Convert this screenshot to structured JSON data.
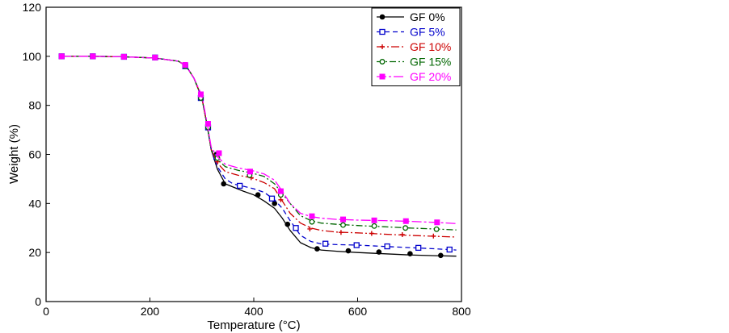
{
  "chart_data": {
    "type": "line",
    "xlabel": "Temperature (°C)",
    "ylabel": "Weight (%)",
    "xlim": [
      0,
      800
    ],
    "ylim": [
      0,
      120
    ],
    "xticks": [
      0,
      200,
      400,
      600,
      800
    ],
    "yticks": [
      0,
      20,
      40,
      60,
      80,
      100,
      120
    ],
    "grid": false,
    "legend_position": "top-right",
    "series": [
      {
        "name": "GF 0%",
        "color": "#000000",
        "dash": "solid",
        "marker": "filled-circle",
        "x": [
          30,
          90,
          150,
          210,
          255,
          270,
          285,
          300,
          310,
          318,
          330,
          345,
          380,
          400,
          420,
          440,
          455,
          470,
          490,
          510,
          530,
          560,
          600,
          650,
          700,
          750,
          790
        ],
        "y": [
          100,
          100,
          99.8,
          99.3,
          98,
          96,
          91,
          83,
          72,
          62,
          54,
          48,
          45,
          43.5,
          41,
          38,
          34,
          29,
          24,
          22,
          21,
          20.5,
          20,
          19.5,
          19,
          18.7,
          18.5
        ],
        "mx": [
          30,
          90,
          150,
          210,
          268,
          298,
          312,
          328,
          342,
          408,
          440,
          465,
          522,
          582,
          641,
          701,
          760
        ],
        "my": [
          100,
          100,
          99.8,
          99.5,
          96,
          83,
          72,
          60,
          48,
          43.5,
          40,
          31.5,
          21.5,
          20.7,
          20.2,
          19.5,
          18.8
        ]
      },
      {
        "name": "GF 5%",
        "color": "#0000cc",
        "dash": "6 4",
        "marker": "open-square",
        "x": [
          30,
          90,
          150,
          210,
          255,
          270,
          285,
          300,
          310,
          318,
          330,
          345,
          360,
          380,
          400,
          420,
          440,
          455,
          470,
          490,
          510,
          530,
          560,
          600,
          650,
          700,
          750,
          790
        ],
        "y": [
          100,
          100,
          99.8,
          99.3,
          98,
          96,
          91,
          83,
          72,
          62,
          55,
          50,
          48,
          47,
          46,
          44.5,
          41.5,
          38,
          33,
          27,
          24.5,
          23.5,
          23.2,
          23,
          22.5,
          22,
          21.5,
          21
        ],
        "mx": [
          30,
          90,
          150,
          210,
          268,
          298,
          312,
          328,
          373,
          435,
          481,
          538,
          598,
          657,
          717,
          777
        ],
        "my": [
          100,
          100,
          99.8,
          99.5,
          96,
          83,
          71,
          59,
          47.2,
          42,
          30,
          23.6,
          23,
          22.5,
          21.9,
          21.2
        ]
      },
      {
        "name": "GF 10%",
        "color": "#cc0000",
        "dash": "10 3 2 3",
        "marker": "plus",
        "x": [
          30,
          90,
          150,
          210,
          255,
          270,
          285,
          300,
          310,
          318,
          330,
          345,
          370,
          395,
          420,
          440,
          455,
          470,
          490,
          510,
          530,
          560,
          600,
          650,
          700,
          750,
          790
        ],
        "y": [
          100,
          100,
          99.8,
          99.3,
          98,
          96,
          91,
          83,
          72,
          62,
          56.5,
          53,
          51.5,
          50.5,
          48.5,
          46,
          41,
          36,
          32,
          30,
          29,
          28.3,
          28,
          27.5,
          27,
          26.6,
          26.3
        ],
        "mx": [
          30,
          90,
          150,
          210,
          268,
          298,
          312,
          330,
          395,
          452,
          508,
          568,
          627,
          686,
          746
        ],
        "my": [
          100,
          100,
          99.8,
          99.5,
          96,
          83,
          71,
          57,
          50.5,
          41.5,
          29.6,
          28.2,
          27.8,
          27.3,
          26.7
        ]
      },
      {
        "name": "GF 15%",
        "color": "#006600",
        "dash": "8 3 2 3",
        "marker": "open-circle",
        "x": [
          30,
          90,
          150,
          210,
          255,
          270,
          285,
          300,
          310,
          318,
          330,
          345,
          370,
          395,
          420,
          440,
          455,
          470,
          490,
          510,
          530,
          560,
          600,
          650,
          700,
          750,
          790
        ],
        "y": [
          100,
          100,
          99.8,
          99.3,
          98,
          96,
          91,
          83,
          72,
          62,
          58,
          55,
          53.5,
          52.5,
          51,
          48,
          44,
          40,
          35,
          33,
          32,
          31.5,
          31,
          30.5,
          30,
          29.6,
          29.2
        ],
        "mx": [
          30,
          90,
          150,
          210,
          268,
          298,
          312,
          330,
          392,
          452,
          512,
          572,
          632,
          692,
          752
        ],
        "my": [
          100,
          100,
          99.8,
          99.5,
          96,
          83,
          71,
          58.5,
          51.5,
          43.5,
          32.5,
          31.2,
          30.8,
          30,
          29.5
        ]
      },
      {
        "name": "GF 20%",
        "color": "#ff00ff",
        "dash": "12 3 3 3",
        "marker": "filled-square",
        "x": [
          30,
          90,
          150,
          210,
          255,
          270,
          285,
          300,
          310,
          318,
          330,
          345,
          370,
          395,
          420,
          440,
          455,
          470,
          490,
          510,
          530,
          560,
          600,
          650,
          700,
          750,
          790
        ],
        "y": [
          100,
          100,
          99.8,
          99.3,
          98,
          96,
          91,
          84,
          73,
          63,
          59,
          56,
          54.5,
          53.5,
          52,
          49.5,
          45,
          40,
          36,
          34.7,
          34,
          33.5,
          33.2,
          33,
          32.7,
          32.3,
          31.8
        ],
        "mx": [
          30,
          90,
          150,
          210,
          268,
          298,
          312,
          333,
          393,
          452,
          512,
          572,
          632,
          693,
          753
        ],
        "my": [
          100,
          100,
          99.8,
          99.5,
          96.5,
          84.5,
          72.5,
          60.5,
          53,
          45,
          34.8,
          33.5,
          33.1,
          32.8,
          32.3
        ]
      }
    ]
  }
}
